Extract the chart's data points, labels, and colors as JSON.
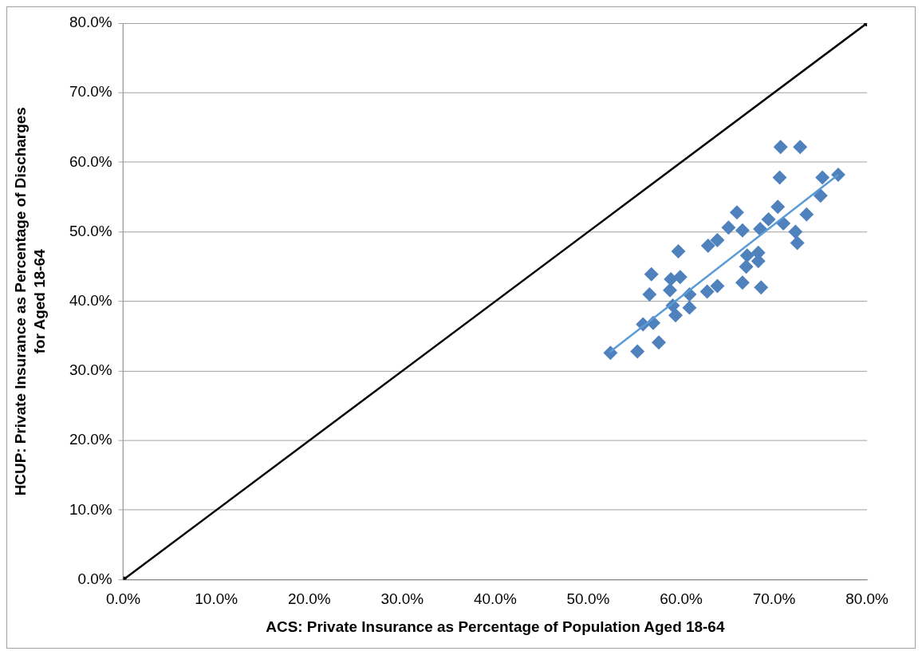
{
  "chart_data": {
    "type": "scatter",
    "xlabel": "ACS: Private Insurance as Percentage of Population Aged 18-64",
    "ylabel": "HCUP: Private Insurance as Percentage of Discharges for Aged 18-64",
    "xlim": [
      0,
      80
    ],
    "ylim": [
      0,
      80
    ],
    "xticks": [
      {
        "value": 0,
        "label": "0.0%"
      },
      {
        "value": 10,
        "label": "10.0%"
      },
      {
        "value": 20,
        "label": "20.0%"
      },
      {
        "value": 30,
        "label": "30.0%"
      },
      {
        "value": 40,
        "label": "40.0%"
      },
      {
        "value": 50,
        "label": "50.0%"
      },
      {
        "value": 60,
        "label": "60.0%"
      },
      {
        "value": 70,
        "label": "70.0%"
      },
      {
        "value": 80,
        "label": "80.0%"
      }
    ],
    "yticks": [
      {
        "value": 0,
        "label": "0.0%"
      },
      {
        "value": 10,
        "label": "10.0%"
      },
      {
        "value": 20,
        "label": "20.0%"
      },
      {
        "value": 30,
        "label": "30.0%"
      },
      {
        "value": 40,
        "label": "40.0%"
      },
      {
        "value": 50,
        "label": "50.0%"
      },
      {
        "value": 60,
        "label": "60.0%"
      },
      {
        "value": 70,
        "label": "70.0%"
      },
      {
        "value": 80,
        "label": "80.0%"
      }
    ],
    "grid": "y",
    "legend": false,
    "series": [
      {
        "type": "line",
        "color": "#000000",
        "marker": "circle",
        "x": [
          0,
          80
        ],
        "values": [
          0,
          80
        ]
      },
      {
        "type": "scatter",
        "color": "#4f81bd",
        "marker": "diamond",
        "x": [
          52.4,
          55.3,
          57.6,
          55.9,
          57.0,
          59.4,
          60.9,
          59.1,
          58.8,
          56.6,
          60.9,
          62.8,
          63.9,
          56.8,
          58.9,
          59.9,
          59.7,
          62.9,
          63.9,
          65.1,
          66.0,
          66.6,
          66.6,
          68.6,
          67.1,
          68.3,
          68.3,
          67.0,
          68.5,
          69.4,
          70.4,
          71.0,
          72.3,
          72.5,
          73.5,
          70.6,
          70.7,
          72.8,
          75.0,
          75.2,
          76.9
        ],
        "values": [
          32.6,
          32.8,
          34.1,
          36.7,
          36.9,
          38.0,
          39.1,
          39.4,
          41.6,
          41.0,
          41.0,
          41.4,
          42.2,
          43.9,
          43.2,
          43.5,
          47.2,
          48.0,
          48.8,
          50.6,
          52.8,
          50.2,
          42.7,
          42.0,
          46.6,
          47.0,
          45.8,
          45.0,
          50.4,
          51.8,
          53.6,
          51.2,
          50.0,
          48.4,
          52.5,
          57.8,
          62.2,
          62.2,
          55.2,
          57.8,
          58.2
        ]
      },
      {
        "type": "line",
        "color": "#5b9bd5",
        "marker": "none",
        "x": [
          52.3,
          76.9
        ],
        "values": [
          32.7,
          58.2
        ]
      }
    ]
  }
}
